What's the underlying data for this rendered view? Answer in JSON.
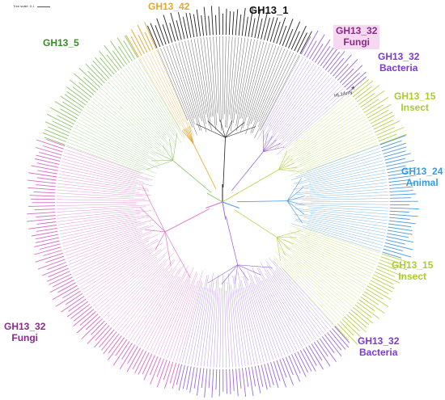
{
  "scale": {
    "label": "Tree scale: 0.1"
  },
  "clades": [
    {
      "id": "gh13-42",
      "name": "GH13_42",
      "sub": "",
      "color": "#e0a82e"
    },
    {
      "id": "gh13-1",
      "name": "GH13_1",
      "sub": "",
      "color": "#111111"
    },
    {
      "id": "gh13-5",
      "name": "GH13_5",
      "sub": "",
      "color": "#3a8a2a"
    },
    {
      "id": "gh13-32-fungi-top",
      "name": "GH13_32",
      "sub": "Fungi",
      "color": "#8b2a8b"
    },
    {
      "id": "gh13-32-bacteria-top",
      "name": "GH13_32",
      "sub": "Bacteria",
      "color": "#7a3ccc"
    },
    {
      "id": "gh13-15-insect-top",
      "name": "GH13_15",
      "sub": "Insect",
      "color": "#a9cc2e"
    },
    {
      "id": "gh13-24-animal",
      "name": "GH13_24",
      "sub": "Animal",
      "color": "#3a9ae0"
    },
    {
      "id": "gh13-15-insect-bottom",
      "name": "GH13_15",
      "sub": "Insect",
      "color": "#a9cc2e"
    },
    {
      "id": "gh13-32-fungi-left",
      "name": "GH13_32",
      "sub": "Fungi",
      "color": "#8b2a8b"
    },
    {
      "id": "gh13-32-bacteria-bottom",
      "name": "GH13_32",
      "sub": "Bacteria",
      "color": "#7a3ccc"
    }
  ],
  "marker": {
    "symbol": "*",
    "label": "HL1Amy"
  },
  "colors": {
    "pink": "#d96bc4",
    "green": "#8fc46a",
    "dark": "#222222",
    "lime": "#b9d24a",
    "blue": "#4a9ae0",
    "purple": "#9a6ad8",
    "orange": "#e0a82e"
  }
}
